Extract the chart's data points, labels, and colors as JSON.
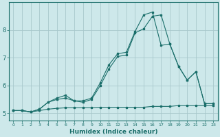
{
  "title": "",
  "xlabel": "Humidex (Indice chaleur)",
  "bg_color": "#cde8ea",
  "grid_color": "#a8c8cc",
  "line_color": "#1a6e6a",
  "xlim": [
    -0.5,
    23.5
  ],
  "ylim": [
    4.75,
    9.0
  ],
  "yticks": [
    5,
    6,
    7,
    8
  ],
  "xticks": [
    0,
    1,
    2,
    3,
    4,
    5,
    6,
    7,
    8,
    9,
    10,
    11,
    12,
    13,
    14,
    15,
    16,
    17,
    18,
    19,
    20,
    21,
    22,
    23
  ],
  "line1_x": [
    0,
    1,
    2,
    3,
    4,
    5,
    6,
    7,
    8,
    9,
    10,
    11,
    12,
    13,
    14,
    15,
    16,
    17,
    18,
    19,
    20,
    21,
    22,
    23
  ],
  "line1_y": [
    5.1,
    5.1,
    5.05,
    5.1,
    5.15,
    5.18,
    5.2,
    5.2,
    5.2,
    5.2,
    5.22,
    5.22,
    5.22,
    5.22,
    5.22,
    5.22,
    5.25,
    5.25,
    5.25,
    5.28,
    5.28,
    5.28,
    5.28,
    5.28
  ],
  "line2_x": [
    0,
    1,
    2,
    3,
    4,
    5,
    6,
    7,
    8,
    9,
    10,
    11,
    12,
    13,
    14,
    15,
    16,
    17,
    18,
    19,
    20,
    21,
    22,
    23
  ],
  "line2_y": [
    5.1,
    5.1,
    5.05,
    5.15,
    5.4,
    5.5,
    5.55,
    5.45,
    5.4,
    5.5,
    6.0,
    6.6,
    7.05,
    7.1,
    7.9,
    8.05,
    8.5,
    8.55,
    7.5,
    6.7,
    6.2,
    6.5,
    5.35,
    5.35
  ],
  "line3_x": [
    0,
    1,
    2,
    3,
    4,
    5,
    6,
    7,
    8,
    9,
    10,
    11,
    12,
    13,
    14,
    15,
    16,
    17,
    18,
    19,
    20,
    21,
    22,
    23
  ],
  "line3_y": [
    5.1,
    5.1,
    5.05,
    5.15,
    5.4,
    5.55,
    5.65,
    5.45,
    5.45,
    5.55,
    6.1,
    6.75,
    7.15,
    7.2,
    7.95,
    8.55,
    8.65,
    7.45,
    7.5,
    6.7,
    6.2,
    6.5,
    5.35,
    5.35
  ]
}
